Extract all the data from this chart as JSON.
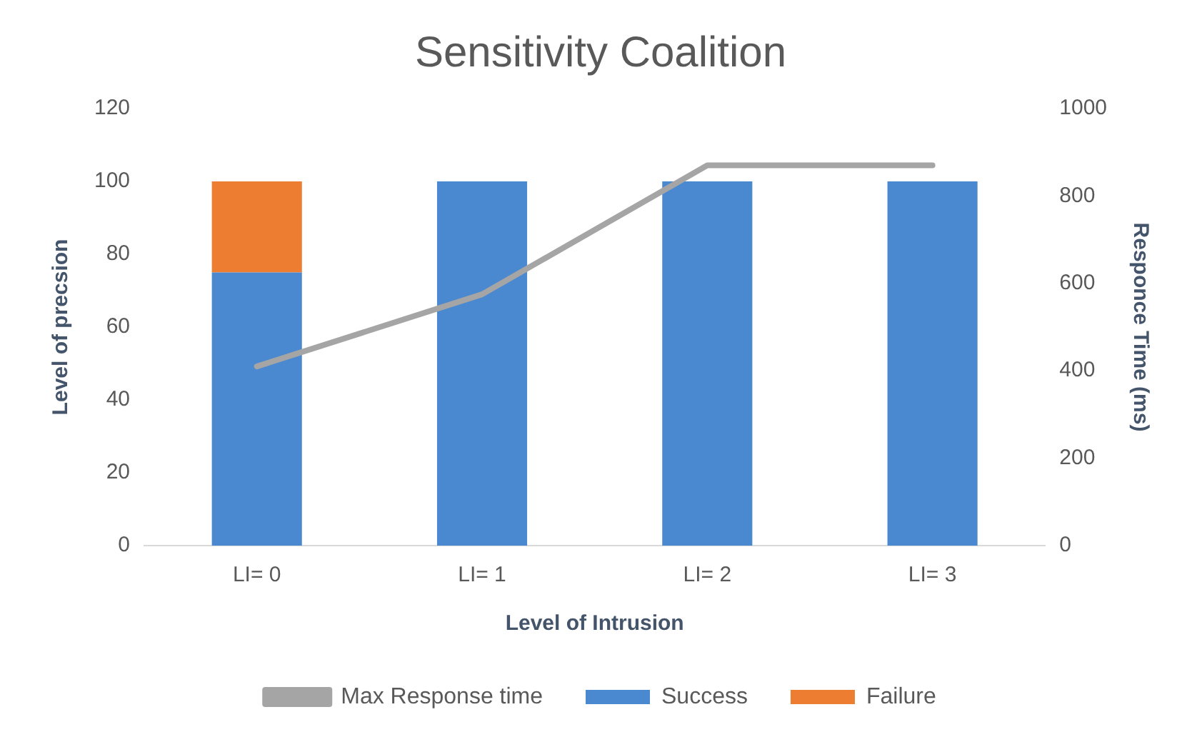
{
  "chart_data": {
    "type": "bar",
    "title": "Sensitivity Coalition",
    "xlabel": "Level of Intrusion",
    "ylabel": "Level of precsion",
    "y2label": "Responce Time (ms)",
    "categories": [
      "LI= 0",
      "LI= 1",
      "LI= 2",
      "LI= 3"
    ],
    "stacked": true,
    "series": [
      {
        "name": "Success",
        "color": "#4a89d0",
        "values": [
          75,
          100,
          100,
          100
        ]
      },
      {
        "name": "Failure",
        "color": "#ed7d31",
        "values": [
          25,
          0,
          0,
          0
        ]
      },
      {
        "name": "Max Response time",
        "type": "line",
        "axis": "y2",
        "color": "#a5a5a5",
        "values": [
          410,
          575,
          870,
          870
        ]
      }
    ],
    "ylim": [
      0,
      120
    ],
    "yticks": [
      0,
      20,
      40,
      60,
      80,
      100,
      120
    ],
    "y2lim": [
      0,
      1000
    ],
    "y2ticks": [
      0,
      200,
      400,
      600,
      800,
      1000
    ],
    "legend": "bottom",
    "marker": "none"
  }
}
